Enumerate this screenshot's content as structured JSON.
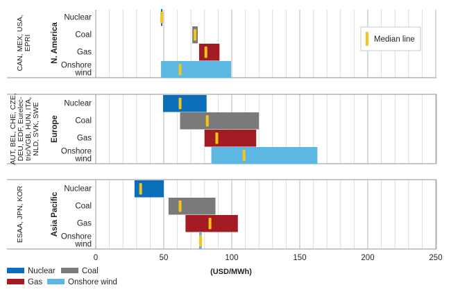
{
  "chart_data": {
    "type": "bar",
    "subtype": "floating-range-bar-with-median",
    "title": "",
    "xlabel": "(USD/MWh)",
    "ylabel": "",
    "xlim": [
      0,
      250
    ],
    "x_ticks": [
      0,
      50,
      100,
      150,
      200,
      250
    ],
    "x_minor_step": 10,
    "grid": true,
    "categories": [
      "Nuclear",
      "Coal",
      "Gas",
      "Onshore wind"
    ],
    "category_labels": [
      [
        "Nuclear"
      ],
      [
        "Coal"
      ],
      [
        "Gas"
      ],
      [
        "Onshore",
        "wind"
      ]
    ],
    "legend": {
      "placement": "bottom-left",
      "entries": [
        {
          "name": "Nuclear",
          "color": "#0a6eb8"
        },
        {
          "name": "Coal",
          "color": "#7a7a7a"
        },
        {
          "name": "Gas",
          "color": "#a31c24"
        },
        {
          "name": "Onshore wind",
          "color": "#5db7e3"
        }
      ]
    },
    "median_legend": {
      "label": "Median line",
      "color": "#f5c518",
      "placement": "top-right"
    },
    "panels": [
      {
        "region": "N. America",
        "sources": [
          "CAN, MEX, USA,",
          "EPRI"
        ],
        "series": [
          {
            "name": "Nuclear",
            "min": 48,
            "max": 49,
            "median": 48.5
          },
          {
            "name": "Coal",
            "min": 71,
            "max": 75,
            "median": 73
          },
          {
            "name": "Gas",
            "min": 76,
            "max": 91,
            "median": 81
          },
          {
            "name": "Onshore wind",
            "min": 48,
            "max": 99.5,
            "median": 62
          }
        ]
      },
      {
        "region": "Europe",
        "sources": [
          "AUT, BEL, CHE, CZE,",
          "DEU, EDF, Eurelec-",
          "tric/VGB, HUN, ITA,",
          "NLD, SVK, SWE"
        ],
        "series": [
          {
            "name": "Nuclear",
            "min": 49.5,
            "max": 81.5,
            "median": 62
          },
          {
            "name": "Coal",
            "min": 62,
            "max": 120,
            "median": 82
          },
          {
            "name": "Gas",
            "min": 80,
            "max": 118,
            "median": 89
          },
          {
            "name": "Onshore wind",
            "min": 85,
            "max": 163,
            "median": 109
          }
        ]
      },
      {
        "region": "Asia Pacific",
        "sources": [
          "ESAA, JPN, KOR"
        ],
        "series": [
          {
            "name": "Nuclear",
            "min": 28.5,
            "max": 50,
            "median": 33
          },
          {
            "name": "Coal",
            "min": 53.5,
            "max": 88,
            "median": 62
          },
          {
            "name": "Gas",
            "min": 66,
            "max": 104.5,
            "median": 84
          },
          {
            "name": "Onshore wind",
            "min": 76,
            "max": 78,
            "median": 77
          }
        ]
      }
    ]
  }
}
